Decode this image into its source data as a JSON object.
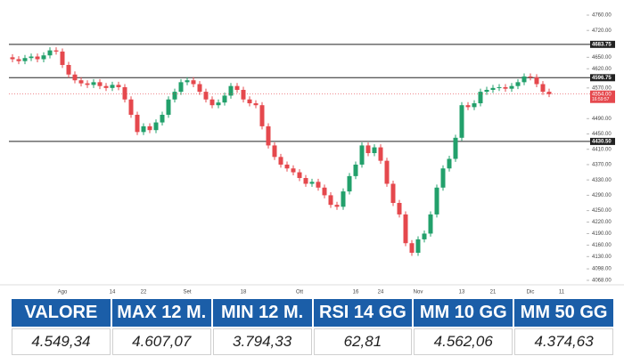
{
  "chart_data": {
    "type": "candlestick",
    "categories": [
      null,
      null,
      null,
      null,
      null,
      null,
      null,
      null,
      "Ago",
      null,
      null,
      null,
      null,
      null,
      null,
      null,
      "14",
      null,
      null,
      null,
      null,
      "22",
      null,
      null,
      null,
      null,
      null,
      null,
      "Set",
      null,
      null,
      null,
      null,
      null,
      null,
      null,
      null,
      "18",
      null,
      null,
      null,
      null,
      null,
      null,
      null,
      null,
      "Ott",
      null,
      null,
      null,
      null,
      null,
      null,
      null,
      null,
      "16",
      null,
      null,
      null,
      "24",
      null,
      null,
      null,
      null,
      null,
      "Nov",
      null,
      null,
      null,
      null,
      null,
      null,
      "13",
      null,
      null,
      null,
      null,
      "21",
      null,
      null,
      null,
      null,
      null,
      "Dic",
      null,
      null,
      null,
      null,
      "11"
    ],
    "open": [
      4650,
      4645,
      4640,
      4648,
      4652,
      4645,
      4655,
      4668,
      4665,
      4630,
      4605,
      4590,
      4582,
      4578,
      4585,
      4575,
      4570,
      4578,
      4572,
      4540,
      4500,
      4455,
      4470,
      4460,
      4480,
      4500,
      4540,
      4560,
      4585,
      4590,
      4580,
      4560,
      4540,
      4525,
      4532,
      4550,
      4575,
      4565,
      4540,
      4530,
      4525,
      4470,
      4420,
      4390,
      4370,
      4360,
      4350,
      4335,
      4320,
      4325,
      4310,
      4290,
      4265,
      4260,
      4300,
      4340,
      4370,
      4420,
      4400,
      4415,
      4380,
      4320,
      4270,
      4240,
      4165,
      4140,
      4175,
      4190,
      4240,
      4310,
      4360,
      4385,
      4440,
      4525,
      4520,
      4530,
      4560,
      4565,
      4570,
      4572,
      4568,
      4575,
      4585,
      4600,
      4598,
      4580,
      4560,
      null,
      null
    ],
    "high": [
      4658,
      4653,
      4656,
      4660,
      4660,
      4663,
      4676,
      4676,
      4673,
      4638,
      4613,
      4598,
      4590,
      4593,
      4593,
      4583,
      4586,
      4586,
      4580,
      4548,
      4508,
      4478,
      4478,
      4488,
      4508,
      4548,
      4568,
      4593,
      4598,
      4598,
      4588,
      4568,
      4548,
      4540,
      4558,
      4583,
      4583,
      4573,
      4548,
      4538,
      4533,
      4478,
      4428,
      4398,
      4378,
      4368,
      4358,
      4343,
      4333,
      4333,
      4318,
      4298,
      4273,
      4308,
      4348,
      4378,
      4428,
      4428,
      4423,
      4423,
      4388,
      4328,
      4278,
      4248,
      4173,
      4183,
      4198,
      4248,
      4318,
      4368,
      4393,
      4448,
      4533,
      4533,
      4538,
      4568,
      4573,
      4578,
      4580,
      4580,
      4583,
      4593,
      4608,
      4608,
      4606,
      4588,
      4568,
      null,
      null
    ],
    "low": [
      4637,
      4632,
      4632,
      4640,
      4637,
      4637,
      4647,
      4657,
      4622,
      4597,
      4582,
      4574,
      4570,
      4570,
      4567,
      4562,
      4562,
      4564,
      4532,
      4492,
      4447,
      4447,
      4452,
      4452,
      4472,
      4492,
      4532,
      4552,
      4577,
      4572,
      4552,
      4532,
      4517,
      4517,
      4524,
      4542,
      4557,
      4532,
      4522,
      4517,
      4462,
      4412,
      4382,
      4362,
      4352,
      4342,
      4327,
      4312,
      4312,
      4302,
      4282,
      4257,
      4252,
      4252,
      4292,
      4332,
      4362,
      4392,
      4392,
      4372,
      4312,
      4262,
      4232,
      4157,
      4132,
      4132,
      4167,
      4182,
      4232,
      4302,
      4352,
      4377,
      4432,
      4512,
      4512,
      4522,
      4552,
      4557,
      4562,
      4560,
      4560,
      4567,
      4577,
      4590,
      4572,
      4552,
      4546,
      null,
      null
    ],
    "close": [
      4645,
      4640,
      4648,
      4652,
      4645,
      4655,
      4668,
      4665,
      4630,
      4605,
      4590,
      4582,
      4578,
      4585,
      4575,
      4570,
      4578,
      4572,
      4540,
      4500,
      4455,
      4470,
      4460,
      4480,
      4500,
      4540,
      4560,
      4585,
      4590,
      4580,
      4560,
      4540,
      4525,
      4532,
      4550,
      4575,
      4565,
      4540,
      4530,
      4525,
      4470,
      4420,
      4390,
      4370,
      4360,
      4350,
      4335,
      4320,
      4325,
      4310,
      4290,
      4265,
      4260,
      4300,
      4340,
      4370,
      4420,
      4400,
      4415,
      4380,
      4320,
      4270,
      4240,
      4165,
      4140,
      4175,
      4190,
      4240,
      4310,
      4360,
      4385,
      4440,
      4525,
      4520,
      4530,
      4560,
      4565,
      4570,
      4572,
      4568,
      4575,
      4585,
      4600,
      4598,
      4580,
      4560,
      4554,
      null,
      null
    ],
    "up_color": "#22a06b",
    "down_color": "#e5484d",
    "ylim": [
      4068,
      4760
    ],
    "yticks": [
      {
        "value": 4760,
        "label": "4760.00"
      },
      {
        "value": 4720,
        "label": "4720.00"
      },
      {
        "value": 4650,
        "label": "4650.00"
      },
      {
        "value": 4620,
        "label": "4620.00"
      },
      {
        "value": 4570,
        "label": "4570.00"
      },
      {
        "value": 4490,
        "label": "4490.00"
      },
      {
        "value": 4450,
        "label": "4450.00"
      },
      {
        "value": 4410,
        "label": "4410.00"
      },
      {
        "value": 4370,
        "label": "4370.00"
      },
      {
        "value": 4330,
        "label": "4330.00"
      },
      {
        "value": 4290,
        "label": "4290.00"
      },
      {
        "value": 4250,
        "label": "4250.00"
      },
      {
        "value": 4220,
        "label": "4220.00"
      },
      {
        "value": 4190,
        "label": "4190.00"
      },
      {
        "value": 4160,
        "label": "4160.00"
      },
      {
        "value": 4130,
        "label": "4130.00"
      },
      {
        "value": 4098,
        "label": "4098.00"
      },
      {
        "value": 4068,
        "label": "4068.00"
      }
    ],
    "levels": [
      {
        "value": 4683.75,
        "label": "4683.75"
      },
      {
        "value": 4596.75,
        "label": "4596.75"
      },
      {
        "value": 4430.5,
        "label": "4430.50"
      }
    ],
    "current": {
      "value": 4554,
      "label": "4554.00",
      "time": "16:59:57"
    }
  },
  "table": {
    "header": [
      "VALORE",
      "MAX 12 M.",
      "MIN 12 M.",
      "RSI 14 GG",
      "MM 10 GG",
      "MM 50 GG"
    ],
    "values": [
      "4.549,34",
      "4.607,07",
      "3.794,33",
      "62,81",
      "4.562,06",
      "4.374,63"
    ]
  }
}
